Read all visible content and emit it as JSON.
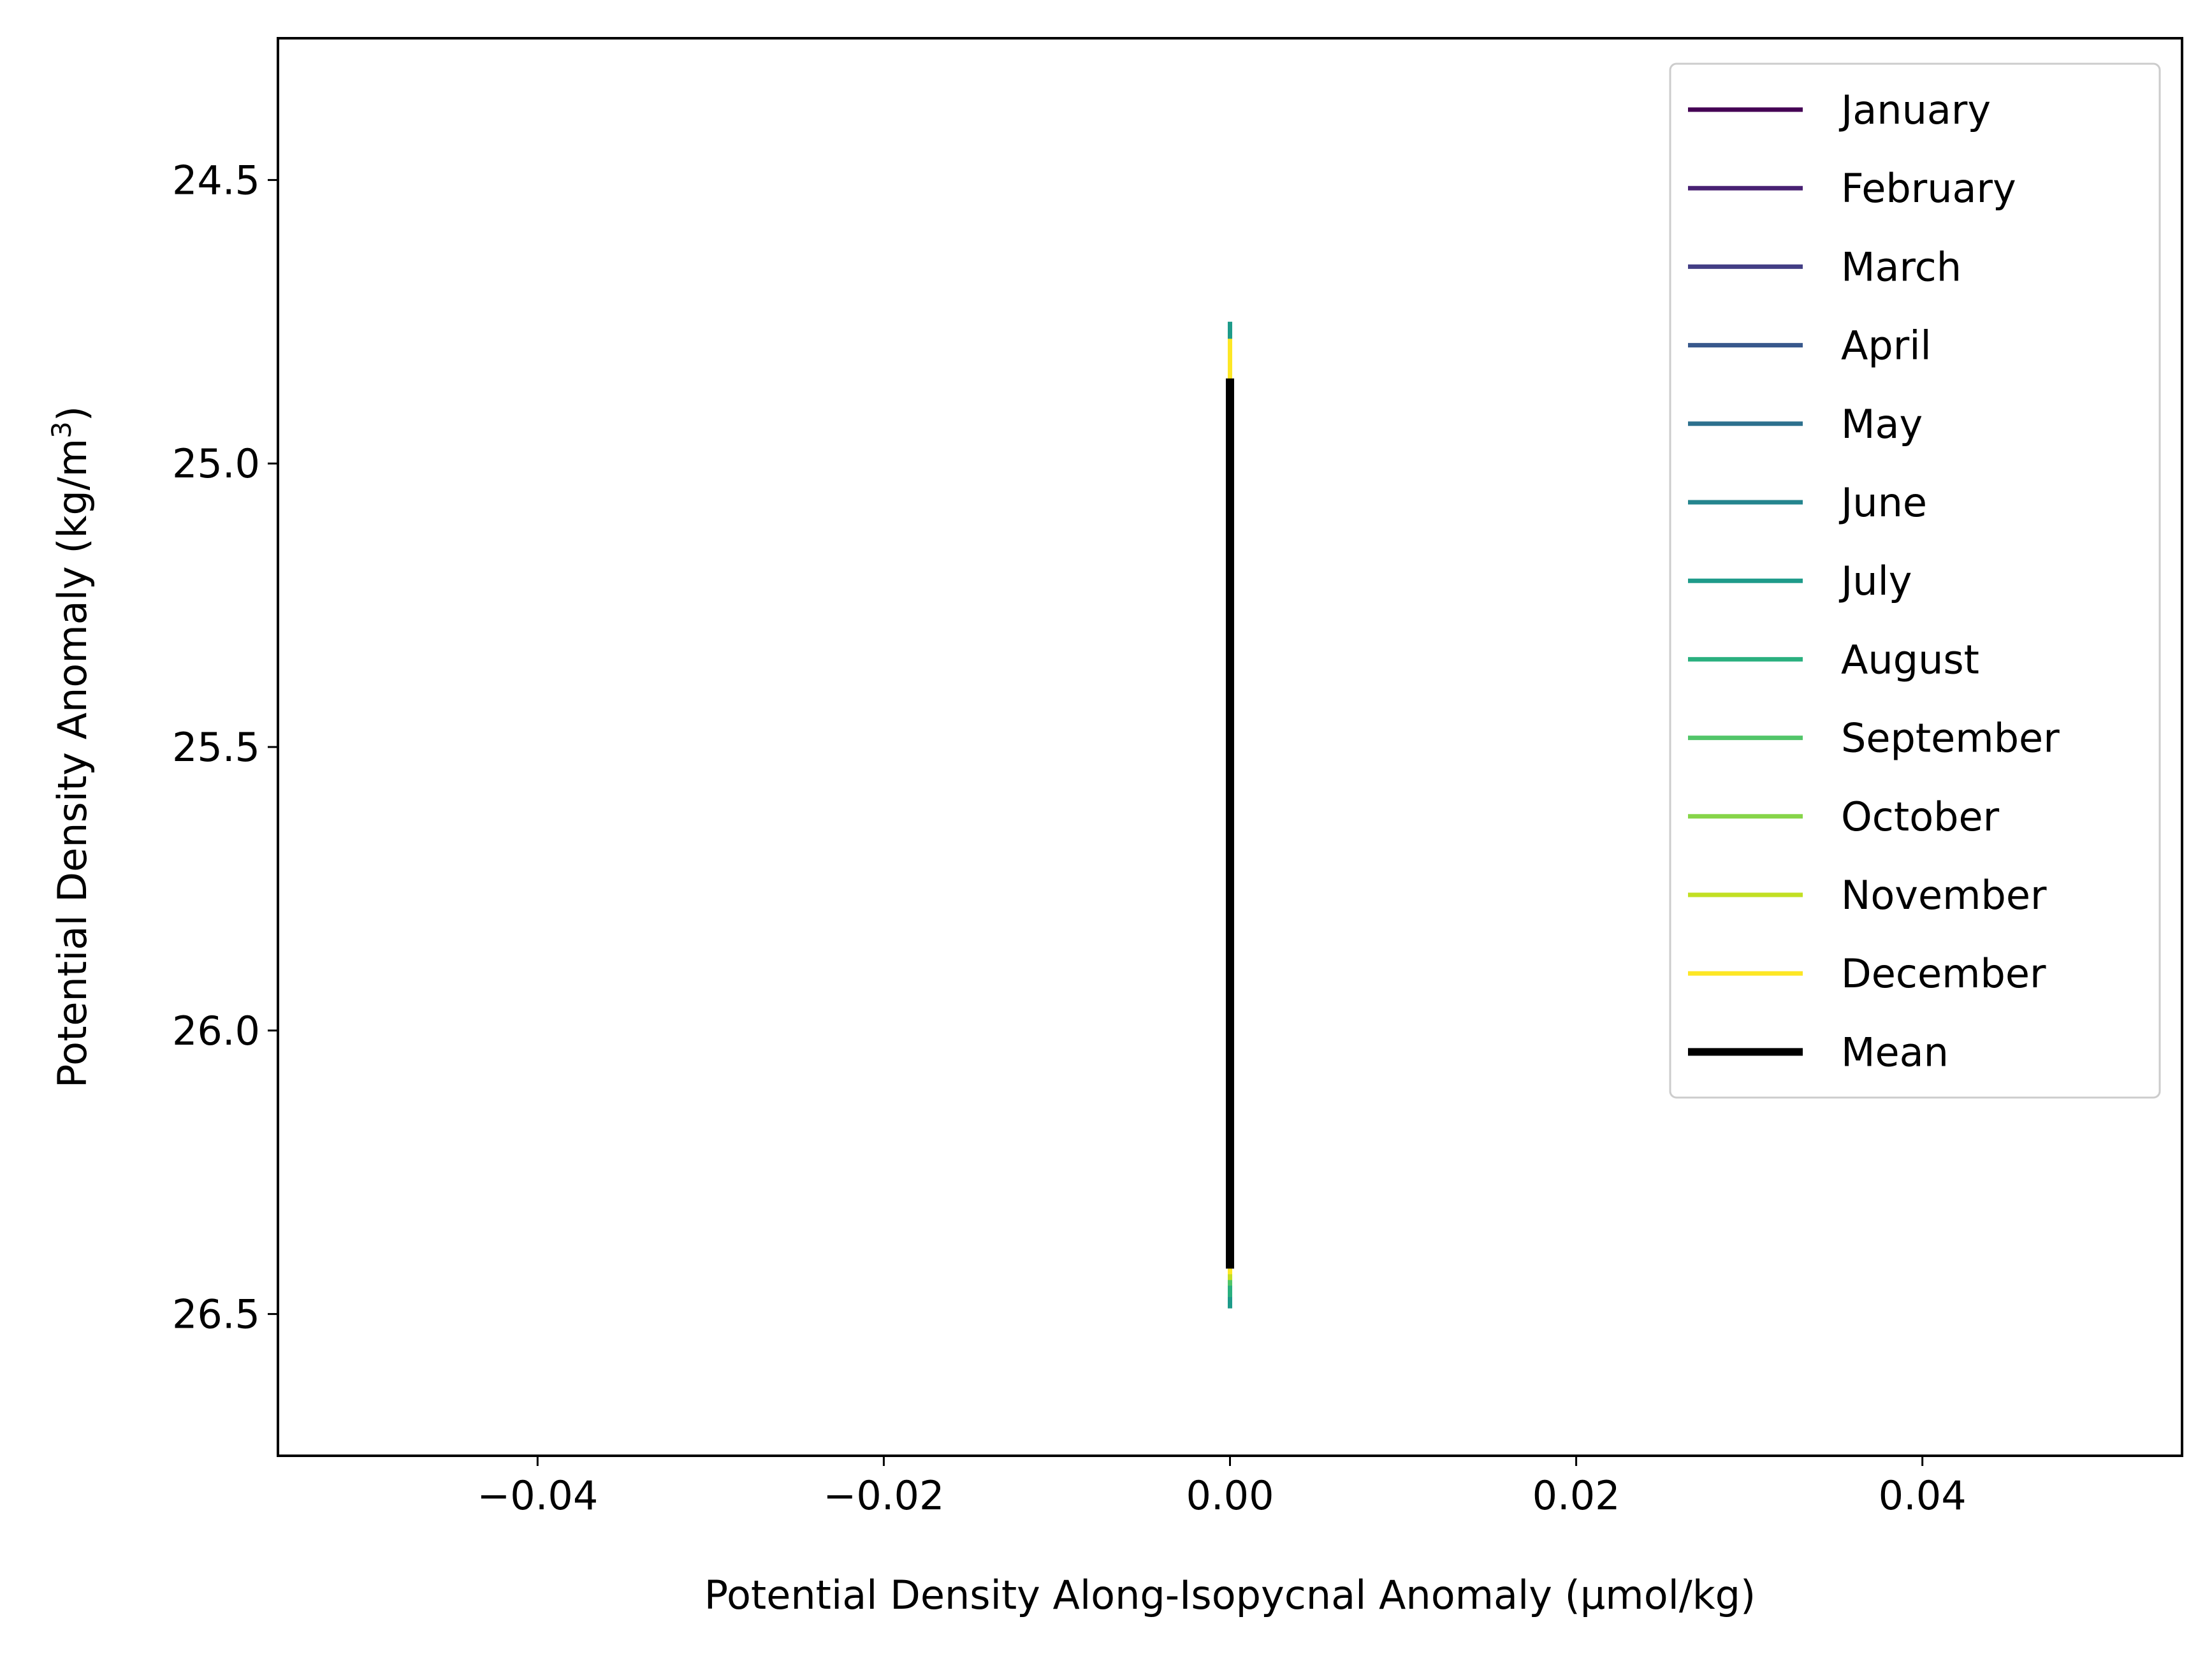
{
  "chart_data": {
    "type": "line",
    "xlabel": "Potential Density Along-Isopycnal Anomaly (µmol/kg)",
    "ylabel": "Potential Density Anomaly (kg/m³)",
    "ylabel_parts": {
      "main": "Potential Density Anomaly (kg/m",
      "sup": "3",
      "close": ")"
    },
    "xlim": [
      -0.055,
      0.055
    ],
    "ylim": [
      26.75,
      24.25
    ],
    "y_inverted": true,
    "xticks": [
      -0.04,
      -0.02,
      0.0,
      0.02,
      0.04
    ],
    "xtick_labels": [
      "−0.04",
      "−0.02",
      "0.00",
      "0.02",
      "0.04"
    ],
    "yticks": [
      24.5,
      25.0,
      25.5,
      26.0,
      26.5
    ],
    "ytick_labels": [
      "24.5",
      "25.0",
      "25.5",
      "26.0",
      "26.5"
    ],
    "grid": false,
    "legend_position": "upper right",
    "series": [
      {
        "name": "January",
        "color": "#440154",
        "x": [
          0.0,
          0.0
        ],
        "y": [
          24.93,
          26.43
        ]
      },
      {
        "name": "February",
        "color": "#482173",
        "x": [
          0.0,
          0.0
        ],
        "y": [
          24.92,
          26.44
        ]
      },
      {
        "name": "March",
        "color": "#433e85",
        "x": [
          0.0,
          0.0
        ],
        "y": [
          24.91,
          26.44
        ]
      },
      {
        "name": "April",
        "color": "#38588c",
        "x": [
          0.0,
          0.0
        ],
        "y": [
          24.9,
          26.45
        ]
      },
      {
        "name": "May",
        "color": "#2d708e",
        "x": [
          0.0,
          0.0
        ],
        "y": [
          24.85,
          26.46
        ]
      },
      {
        "name": "June",
        "color": "#25858e",
        "x": [
          0.0,
          0.0
        ],
        "y": [
          24.78,
          26.47
        ]
      },
      {
        "name": "July",
        "color": "#1e9b8a",
        "x": [
          0.0,
          0.0
        ],
        "y": [
          24.75,
          26.49
        ]
      },
      {
        "name": "August",
        "color": "#2ab07f",
        "x": [
          0.0,
          0.0
        ],
        "y": [
          24.8,
          26.47
        ]
      },
      {
        "name": "September",
        "color": "#52c569",
        "x": [
          0.0,
          0.0
        ],
        "y": [
          24.83,
          26.45
        ]
      },
      {
        "name": "October",
        "color": "#86d549",
        "x": [
          0.0,
          0.0
        ],
        "y": [
          24.84,
          26.44
        ]
      },
      {
        "name": "November",
        "color": "#c2df23",
        "x": [
          0.0,
          0.0
        ],
        "y": [
          24.82,
          26.44
        ]
      },
      {
        "name": "December",
        "color": "#fde725",
        "x": [
          0.0,
          0.0
        ],
        "y": [
          24.78,
          26.43
        ]
      },
      {
        "name": "Mean",
        "color": "#000000",
        "x": [
          0.0,
          0.0
        ],
        "y": [
          24.85,
          26.42
        ],
        "bold": true
      }
    ]
  }
}
